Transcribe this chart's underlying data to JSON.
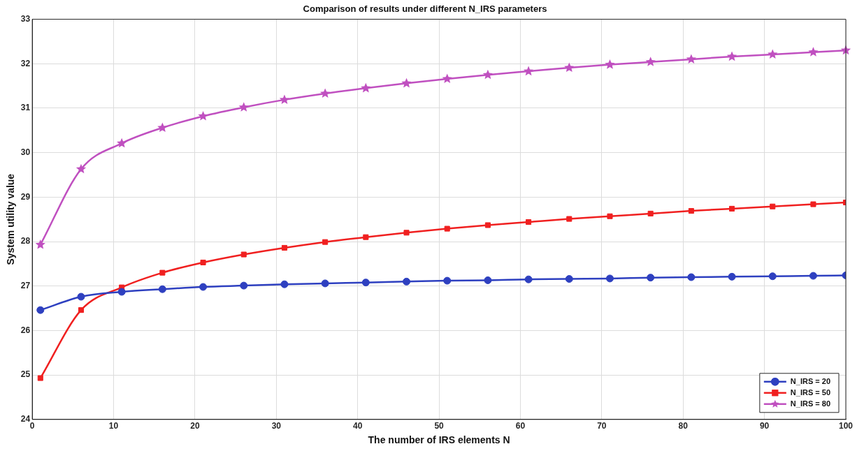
{
  "chart_data": {
    "type": "line",
    "title": "Comparison of results under different N_IRS parameters",
    "xlabel": "The number of IRS elements N",
    "ylabel": "System utility value",
    "x": [
      1,
      6,
      11,
      16,
      21,
      26,
      31,
      36,
      41,
      46,
      51,
      56,
      61,
      66,
      71,
      76,
      81,
      86,
      91,
      96,
      100
    ],
    "series": [
      {
        "name": "N_IRS = 20",
        "color": "#2e40c0",
        "marker": "circle",
        "values": [
          26.46,
          26.76,
          26.87,
          26.93,
          26.98,
          27.01,
          27.04,
          27.06,
          27.08,
          27.1,
          27.12,
          27.13,
          27.15,
          27.16,
          27.17,
          27.19,
          27.2,
          27.21,
          27.22,
          27.23,
          27.24
        ]
      },
      {
        "name": "N_IRS = 50",
        "color": "#f02020",
        "marker": "square",
        "values": [
          24.93,
          26.46,
          26.97,
          27.3,
          27.53,
          27.71,
          27.86,
          27.99,
          28.1,
          28.2,
          28.29,
          28.37,
          28.44,
          28.51,
          28.57,
          28.63,
          28.69,
          28.74,
          28.79,
          28.84,
          28.88
        ]
      },
      {
        "name": "N_IRS = 80",
        "color": "#c050c0",
        "marker": "star",
        "values": [
          27.93,
          29.63,
          30.21,
          30.56,
          30.82,
          31.02,
          31.19,
          31.33,
          31.45,
          31.56,
          31.66,
          31.75,
          31.83,
          31.91,
          31.98,
          32.04,
          32.1,
          32.16,
          32.21,
          32.26,
          32.3
        ]
      }
    ],
    "xlim": [
      0,
      100
    ],
    "xticks": [
      0,
      10,
      20,
      30,
      40,
      50,
      60,
      70,
      80,
      90,
      100
    ],
    "ylim": [
      24,
      33
    ],
    "yticks": [
      24,
      25,
      26,
      27,
      28,
      29,
      30,
      31,
      32,
      33
    ],
    "grid": true,
    "legend": "bottom right",
    "line_style": "solid"
  }
}
